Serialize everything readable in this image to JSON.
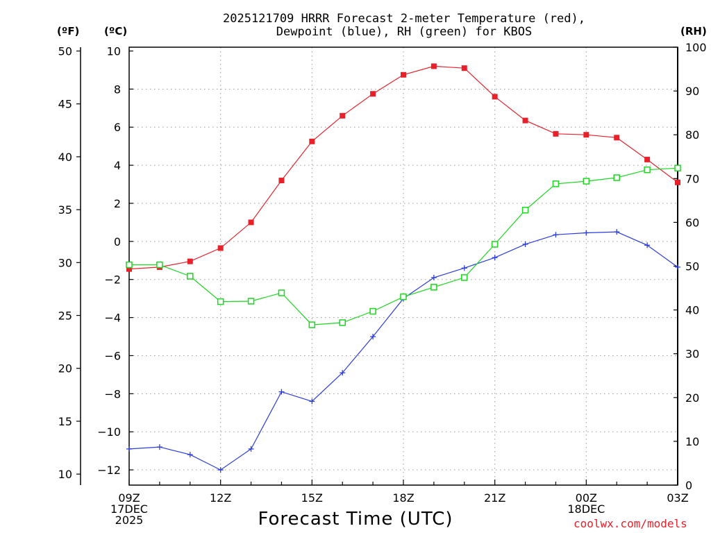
{
  "chart_data": {
    "type": "line",
    "title_line1": "2025121709 HRRR Forecast 2-meter Temperature (red),",
    "title_line2": "Dewpoint (blue), RH (green) for KBOS",
    "xlabel": "Forecast Time (UTC)",
    "credit": "coolwx.com/models",
    "units": {
      "fahrenheit": "(ºF)",
      "celsius": "(ºC)",
      "rh": "(RH)"
    },
    "x_hours": [
      0,
      1,
      2,
      3,
      4,
      5,
      6,
      7,
      8,
      9,
      10,
      11,
      12,
      13,
      14,
      15,
      16,
      17,
      18
    ],
    "x_ticks": [
      {
        "hour": 0,
        "lines": [
          "09Z",
          "17DEC",
          "2025"
        ]
      },
      {
        "hour": 3,
        "lines": [
          "12Z"
        ]
      },
      {
        "hour": 6,
        "lines": [
          "15Z"
        ]
      },
      {
        "hour": 9,
        "lines": [
          "18Z"
        ]
      },
      {
        "hour": 12,
        "lines": [
          "21Z"
        ]
      },
      {
        "hour": 15,
        "lines": [
          "00Z",
          "18DEC"
        ]
      },
      {
        "hour": 18,
        "lines": [
          "03Z"
        ]
      }
    ],
    "celsius_axis": {
      "min": -12,
      "max": 10,
      "ticks": [
        10,
        8,
        6,
        4,
        2,
        0,
        -2,
        -4,
        -6,
        -8,
        -10,
        -12
      ],
      "plot_min": -12.8,
      "plot_max": 10.2
    },
    "fahrenheit_axis": {
      "ticks": [
        50,
        45,
        40,
        35,
        30,
        25,
        20,
        15,
        10
      ]
    },
    "rh_axis": {
      "min": 0,
      "max": 100,
      "ticks": [
        100,
        90,
        80,
        70,
        60,
        50,
        40,
        30,
        20,
        10,
        0
      ]
    },
    "series": [
      {
        "name": "Temperature",
        "unit": "C",
        "color": "#e8202a",
        "marker": "filled-square",
        "values": [
          -1.45,
          -1.35,
          -1.05,
          -0.35,
          1.0,
          3.2,
          5.25,
          6.6,
          7.75,
          8.75,
          9.2,
          9.1,
          7.6,
          6.35,
          5.65,
          5.6,
          5.45,
          4.3,
          3.1
        ]
      },
      {
        "name": "Dewpoint",
        "unit": "C",
        "color": "#2a3ce0",
        "marker": "plus",
        "values": [
          -10.9,
          -10.8,
          -11.2,
          -12.0,
          -10.9,
          -7.9,
          -8.4,
          -6.9,
          -5.0,
          -3.0,
          -1.9,
          -1.4,
          -0.85,
          -0.15,
          0.35,
          0.45,
          0.5,
          -0.2,
          -1.35
        ]
      },
      {
        "name": "RH",
        "unit": "%",
        "color": "#19d81e",
        "marker": "open-square",
        "values": [
          50.3,
          50.3,
          47.7,
          41.9,
          42.0,
          43.9,
          36.6,
          37.1,
          39.7,
          43.0,
          45.2,
          47.4,
          55.0,
          62.8,
          68.8,
          69.4,
          70.2,
          72.0,
          72.4
        ]
      }
    ]
  }
}
